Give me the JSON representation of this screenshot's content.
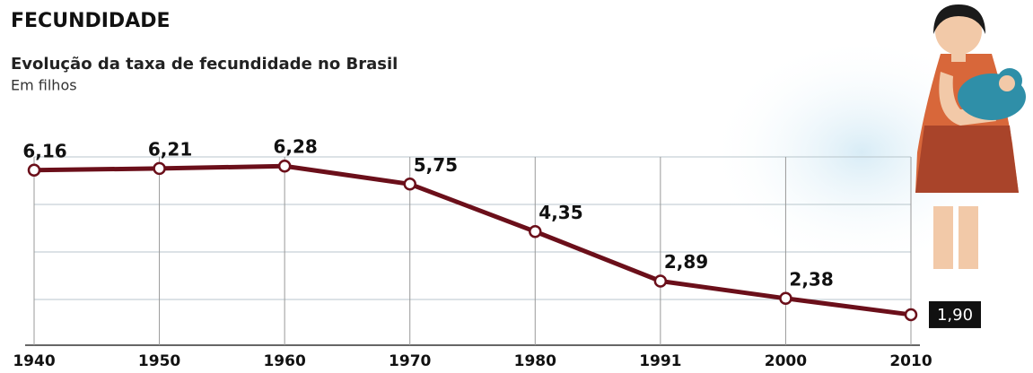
{
  "chart_data": {
    "type": "line",
    "title": "FECUNDIDADE",
    "subtitle": "Evolução da taxa de fecundidade no Brasil",
    "unit_label": "Em filhos",
    "categories": [
      "1940",
      "1950",
      "1960",
      "1970",
      "1980",
      "1991",
      "2000",
      "2010"
    ],
    "values": [
      6.16,
      6.21,
      6.28,
      5.75,
      4.35,
      2.89,
      2.38,
      1.9
    ],
    "value_labels": [
      "6,16",
      "6,21",
      "6,28",
      "5,75",
      "4,35",
      "2,89",
      "2,38",
      "1,90"
    ],
    "color": "#6b0f1a",
    "ylim": [
      1,
      7
    ],
    "grid": true
  }
}
